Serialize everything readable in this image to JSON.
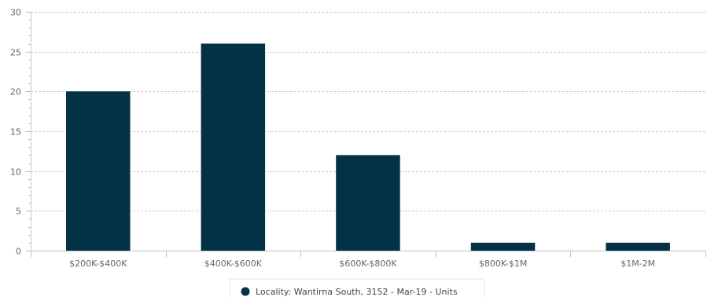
{
  "chart_data": {
    "type": "bar",
    "categories": [
      "$200K-$400K",
      "$400K-$600K",
      "$600K-$800K",
      "$800K-$1M",
      "$1M-2M"
    ],
    "series": [
      {
        "name": "Locality: Wantirna South, 3152 - Mar-19 - Units",
        "values": [
          20,
          26,
          12,
          1,
          1
        ],
        "color": "#033246"
      }
    ],
    "ylim": [
      0,
      30
    ],
    "yticks": [
      0,
      5,
      10,
      15,
      20,
      25,
      30
    ],
    "grid": true,
    "legend": "bottom-center"
  }
}
